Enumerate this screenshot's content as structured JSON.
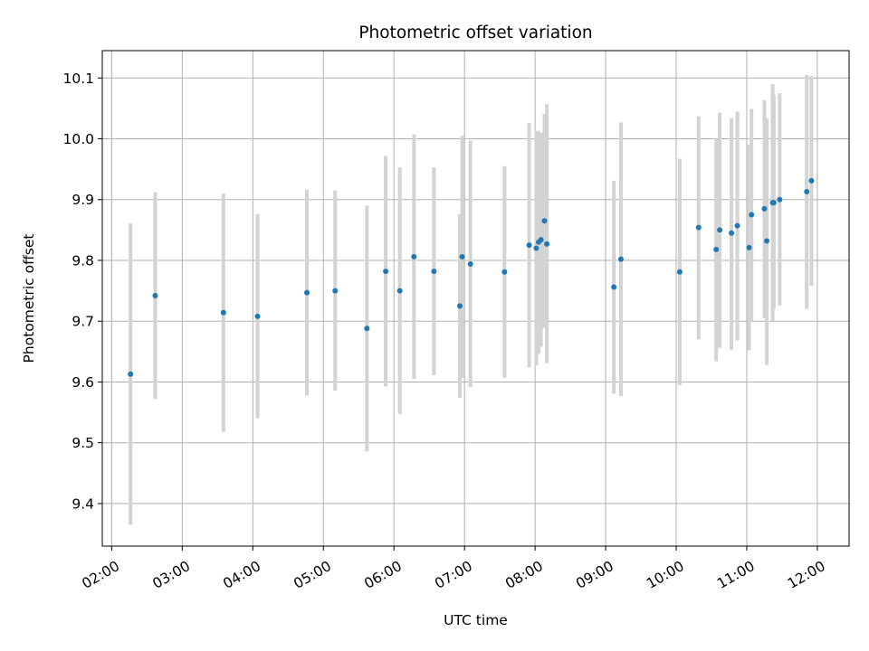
{
  "chart_data": {
    "type": "scatter",
    "title": "Photometric offset variation",
    "xlabel": "UTC time",
    "ylabel": "Photometric offset",
    "x_unit": "UTC clock time (HH:MM)",
    "x_ticks": [
      "02:00",
      "03:00",
      "04:00",
      "05:00",
      "06:00",
      "07:00",
      "08:00",
      "09:00",
      "10:00",
      "11:00",
      "12:00"
    ],
    "y_ticks": [
      "9.4",
      "9.5",
      "9.6",
      "9.7",
      "9.8",
      "9.9",
      "10.0",
      "10.1"
    ],
    "xlim": [
      "01:52",
      "12:27"
    ],
    "ylim": [
      9.33,
      10.145
    ],
    "grid": true,
    "colors": {
      "points": "#1f77b4",
      "errorbars": "#d3d3d3",
      "grid": "#b0b0b0"
    },
    "points": [
      {
        "x": "02:16",
        "y": 9.613,
        "ylo": 9.365,
        "yhi": 9.861
      },
      {
        "x": "02:37",
        "y": 9.742,
        "ylo": 9.572,
        "yhi": 9.912
      },
      {
        "x": "03:35",
        "y": 9.714,
        "ylo": 9.518,
        "yhi": 9.91
      },
      {
        "x": "04:04",
        "y": 9.708,
        "ylo": 9.54,
        "yhi": 9.876
      },
      {
        "x": "04:46",
        "y": 9.747,
        "ylo": 9.578,
        "yhi": 9.916
      },
      {
        "x": "05:10",
        "y": 9.75,
        "ylo": 9.586,
        "yhi": 9.915
      },
      {
        "x": "05:37",
        "y": 9.688,
        "ylo": 9.486,
        "yhi": 9.89
      },
      {
        "x": "05:53",
        "y": 9.782,
        "ylo": 9.593,
        "yhi": 9.972
      },
      {
        "x": "06:05",
        "y": 9.75,
        "ylo": 9.547,
        "yhi": 9.953
      },
      {
        "x": "06:17",
        "y": 9.806,
        "ylo": 9.605,
        "yhi": 10.007
      },
      {
        "x": "06:34",
        "y": 9.782,
        "ylo": 9.611,
        "yhi": 9.953
      },
      {
        "x": "06:56",
        "y": 9.725,
        "ylo": 9.574,
        "yhi": 9.876
      },
      {
        "x": "06:58",
        "y": 9.806,
        "ylo": 9.607,
        "yhi": 10.005
      },
      {
        "x": "07:05",
        "y": 9.794,
        "ylo": 9.592,
        "yhi": 9.997
      },
      {
        "x": "07:34",
        "y": 9.781,
        "ylo": 9.607,
        "yhi": 9.955
      },
      {
        "x": "07:55",
        "y": 9.825,
        "ylo": 9.624,
        "yhi": 10.026
      },
      {
        "x": "08:01",
        "y": 9.82,
        "ylo": 9.627,
        "yhi": 10.013
      },
      {
        "x": "08:03",
        "y": 9.83,
        "ylo": 9.646,
        "yhi": 10.013
      },
      {
        "x": "08:05",
        "y": 9.834,
        "ylo": 9.658,
        "yhi": 10.01
      },
      {
        "x": "08:08",
        "y": 9.865,
        "ylo": 9.689,
        "yhi": 10.041
      },
      {
        "x": "08:10",
        "y": 9.827,
        "ylo": 9.631,
        "yhi": 10.057
      },
      {
        "x": "09:07",
        "y": 9.756,
        "ylo": 9.581,
        "yhi": 9.931
      },
      {
        "x": "09:13",
        "y": 9.802,
        "ylo": 9.577,
        "yhi": 10.027
      },
      {
        "x": "10:03",
        "y": 9.781,
        "ylo": 9.595,
        "yhi": 9.967
      },
      {
        "x": "10:19",
        "y": 9.854,
        "ylo": 9.67,
        "yhi": 10.037
      },
      {
        "x": "10:34",
        "y": 9.818,
        "ylo": 9.634,
        "yhi": 10.0
      },
      {
        "x": "10:37",
        "y": 9.85,
        "ylo": 9.656,
        "yhi": 10.043
      },
      {
        "x": "10:47",
        "y": 9.845,
        "ylo": 9.653,
        "yhi": 10.034
      },
      {
        "x": "10:52",
        "y": 9.857,
        "ylo": 9.668,
        "yhi": 10.045
      },
      {
        "x": "11:02",
        "y": 9.821,
        "ylo": 9.652,
        "yhi": 9.99
      },
      {
        "x": "11:04",
        "y": 9.875,
        "ylo": 9.7,
        "yhi": 10.049
      },
      {
        "x": "11:15",
        "y": 9.885,
        "ylo": 9.705,
        "yhi": 10.064
      },
      {
        "x": "11:17",
        "y": 9.832,
        "ylo": 9.628,
        "yhi": 10.033
      },
      {
        "x": "11:22",
        "y": 9.895,
        "ylo": 9.701,
        "yhi": 10.09
      },
      {
        "x": "11:23",
        "y": 9.895,
        "ylo": 9.72,
        "yhi": 10.071
      },
      {
        "x": "11:28",
        "y": 9.9,
        "ylo": 9.726,
        "yhi": 10.075
      },
      {
        "x": "11:51",
        "y": 9.913,
        "ylo": 9.72,
        "yhi": 10.105
      },
      {
        "x": "11:55",
        "y": 9.931,
        "ylo": 9.758,
        "yhi": 10.103
      }
    ]
  }
}
